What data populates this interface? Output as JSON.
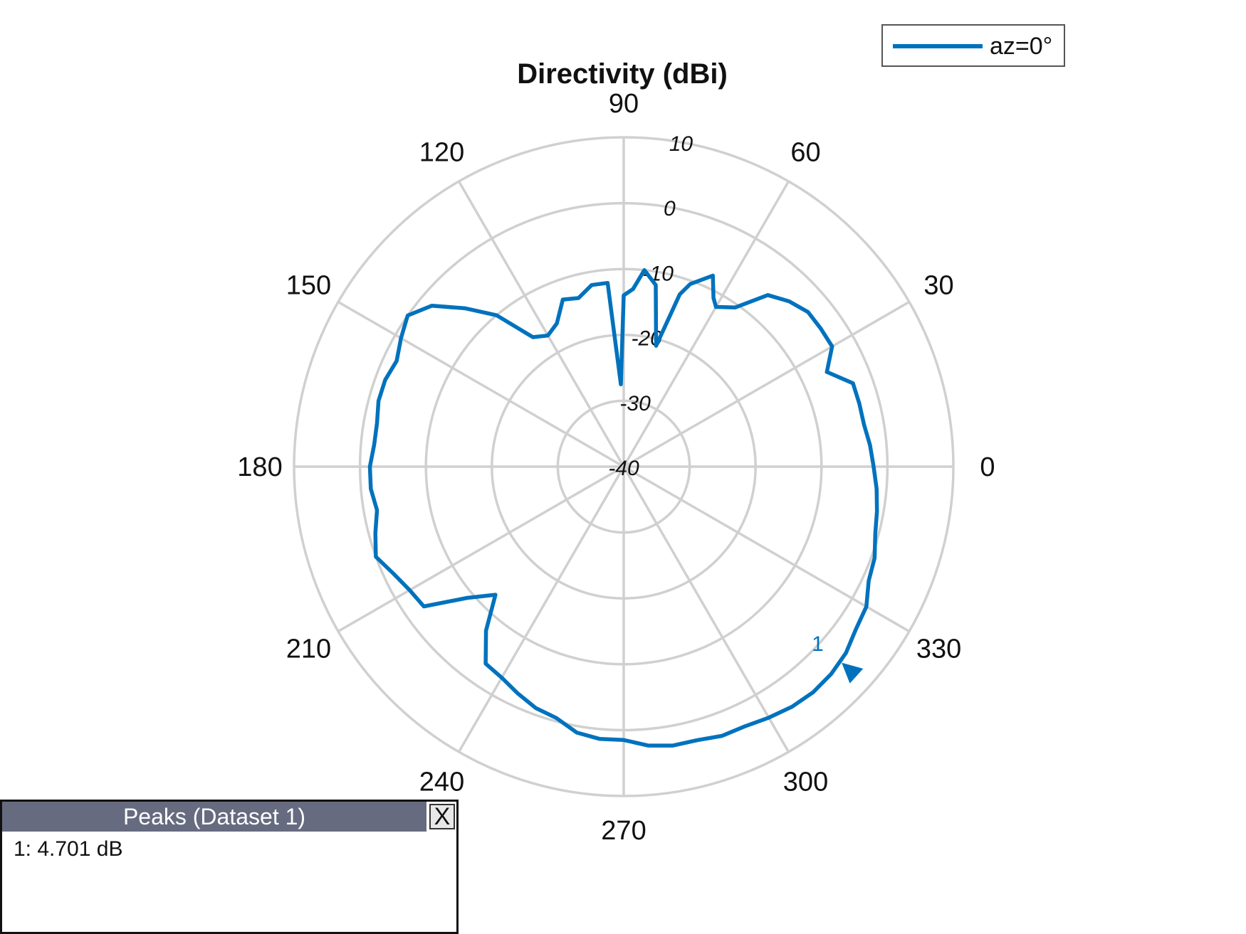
{
  "chart_data": {
    "type": "polar-line",
    "title": "Directivity (dBi)",
    "angle_unit": "degrees",
    "angle_ticks": [
      0,
      30,
      60,
      90,
      120,
      150,
      180,
      210,
      240,
      270,
      300,
      330
    ],
    "angle_tick_labels": [
      "0",
      "30",
      "60",
      "90",
      "120",
      "150",
      "180",
      "210",
      "240",
      "270",
      "300",
      "330"
    ],
    "radial_ticks": [
      -40,
      -30,
      -20,
      -10,
      0,
      10
    ],
    "radial_tick_labels": [
      "-40",
      "-30",
      "-20",
      "-10",
      "0",
      "10"
    ],
    "rlim": [
      -40,
      10
    ],
    "grid": true,
    "legend_position": "top-right",
    "series": [
      {
        "name": "az=0°",
        "color": "#0072BD",
        "theta": [
          0,
          5,
          10,
          15,
          20,
          25,
          30,
          35,
          40,
          45,
          50,
          55,
          60,
          62,
          65,
          70,
          72,
          75,
          80,
          84,
          87,
          90,
          92,
          95,
          100,
          105,
          110,
          115,
          120,
          125,
          130,
          135,
          140,
          145,
          150,
          155,
          160,
          165,
          170,
          175,
          180,
          185,
          190,
          195,
          200,
          205,
          210,
          215,
          220,
          225,
          230,
          235,
          240,
          245,
          250,
          255,
          260,
          265,
          270,
          275,
          280,
          285,
          290,
          295,
          300,
          305,
          310,
          315,
          320,
          325,
          330,
          335,
          340,
          345,
          350,
          355
        ],
        "r": [
          -2.1,
          -2.5,
          -3.0,
          -3.0,
          -3.0,
          -6.0,
          -3.5,
          -3.5,
          -3.5,
          -4.5,
          -6.0,
          -10.5,
          -12.0,
          -11.0,
          -8.0,
          -10.5,
          -12.5,
          -21.0,
          -12.0,
          -10.0,
          -13.0,
          -14.0,
          -27.5,
          -12.0,
          -12.0,
          -13.5,
          -13.0,
          -16.0,
          -17.0,
          -16.0,
          -10.0,
          -6.0,
          -2.0,
          0.0,
          -1.0,
          -2.0,
          -1.5,
          -1.5,
          -2.0,
          -2.0,
          -1.5,
          -1.5,
          -2.0,
          -1.0,
          0.0,
          -1.5,
          -2.5,
          -3.0,
          -9.0,
          -12.5,
          -7.5,
          -3.5,
          -3.0,
          -2.0,
          -1.0,
          -0.5,
          1.0,
          1.5,
          1.5,
          2.5,
          3.0,
          3.0,
          3.5,
          3.5,
          4.0,
          4.5,
          4.7,
          4.5,
          4.0,
          3.0,
          2.5,
          1.0,
          0.5,
          -0.5,
          -1.0,
          -1.5
        ]
      }
    ],
    "peak_marker": {
      "label": "1",
      "theta": 318,
      "value_db": 4.701
    }
  },
  "legend": {
    "entry": "az=0°"
  },
  "peaks_panel": {
    "title": "Peaks (Dataset 1)",
    "close_label": "X",
    "entry": "1: 4.701 dB"
  }
}
